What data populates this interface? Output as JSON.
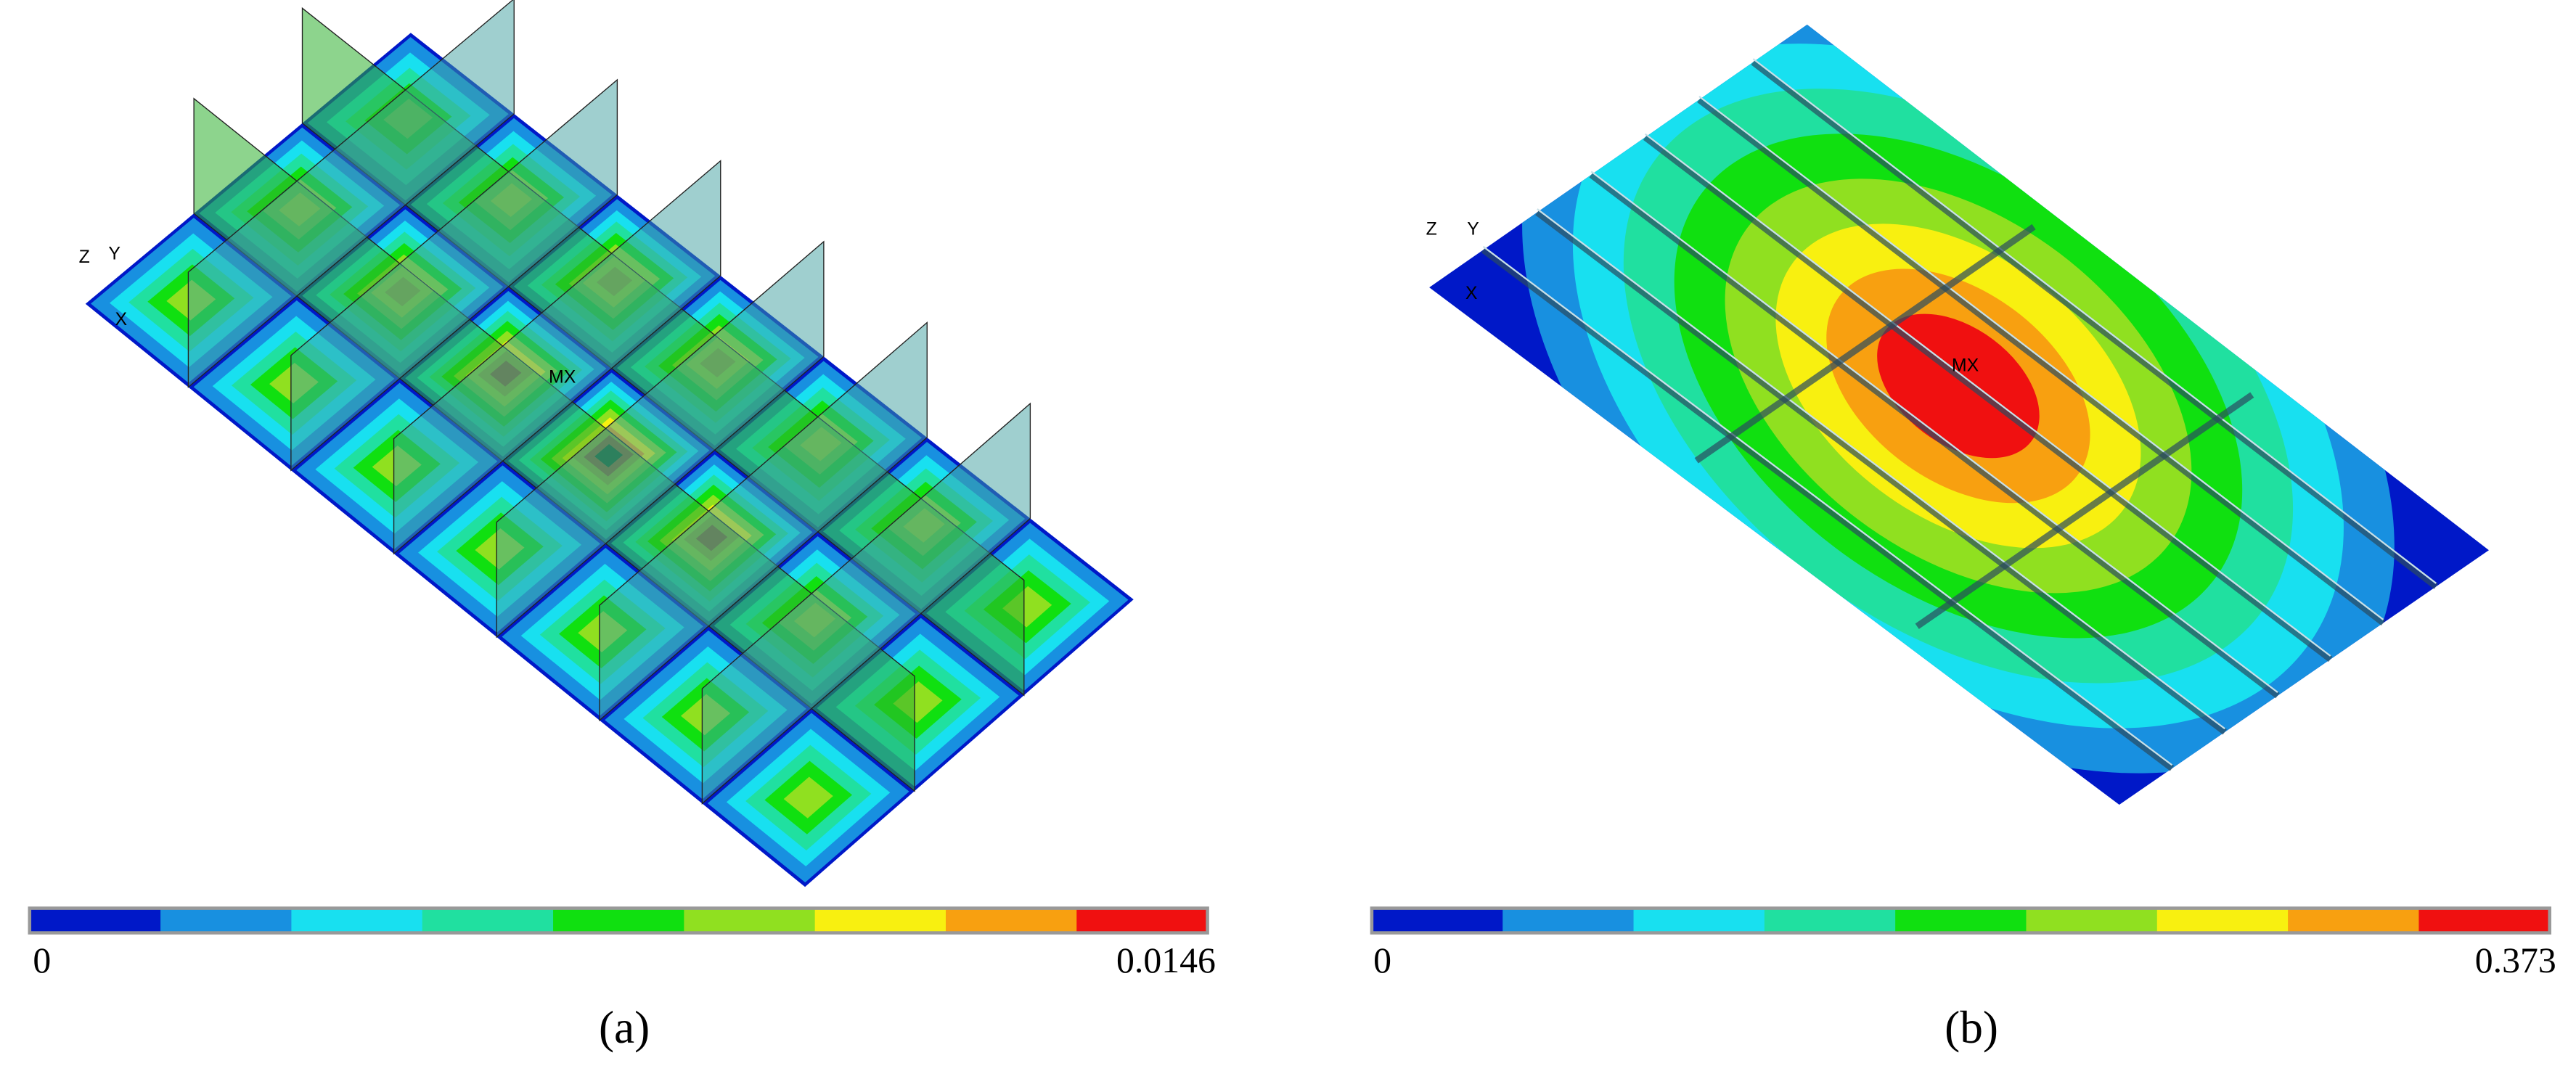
{
  "panels": [
    {
      "label": "(a)",
      "marker": "MX",
      "axes": {
        "z": "Z",
        "y": "Y",
        "x": "X"
      },
      "colorbar": {
        "min": "0",
        "max": "0.0146"
      }
    },
    {
      "label": "(b)",
      "marker": "MX",
      "axes": {
        "z": "Z",
        "y": "Y",
        "x": "X"
      },
      "colorbar": {
        "min": "0",
        "max": "0.373"
      }
    }
  ]
}
